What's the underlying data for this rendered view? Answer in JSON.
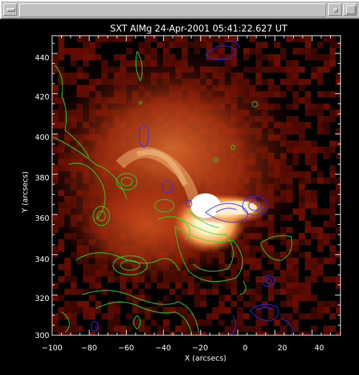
{
  "window": {
    "menu_button_icon": "window-menu-icon",
    "minimize_button_icon": "minimize-icon",
    "maximize_button_icon": "maximize-icon"
  },
  "plot": {
    "title": "SXT AlMg 24-Apr-2001 05:41:22.627 UT",
    "x_axis_label": "X (arcsecs)",
    "y_axis_label": "Y (arcsecs)",
    "x_ticks": [
      "−100",
      "−80",
      "−60",
      "−40",
      "−20",
      "0",
      "20",
      "40"
    ],
    "y_ticks": [
      "300",
      "320",
      "340",
      "360",
      "380",
      "400",
      "420",
      "440"
    ],
    "colors": {
      "image_colormap": "red-temperature",
      "green_contours": "#22e022",
      "blue_contours": "#2222ee"
    }
  }
}
